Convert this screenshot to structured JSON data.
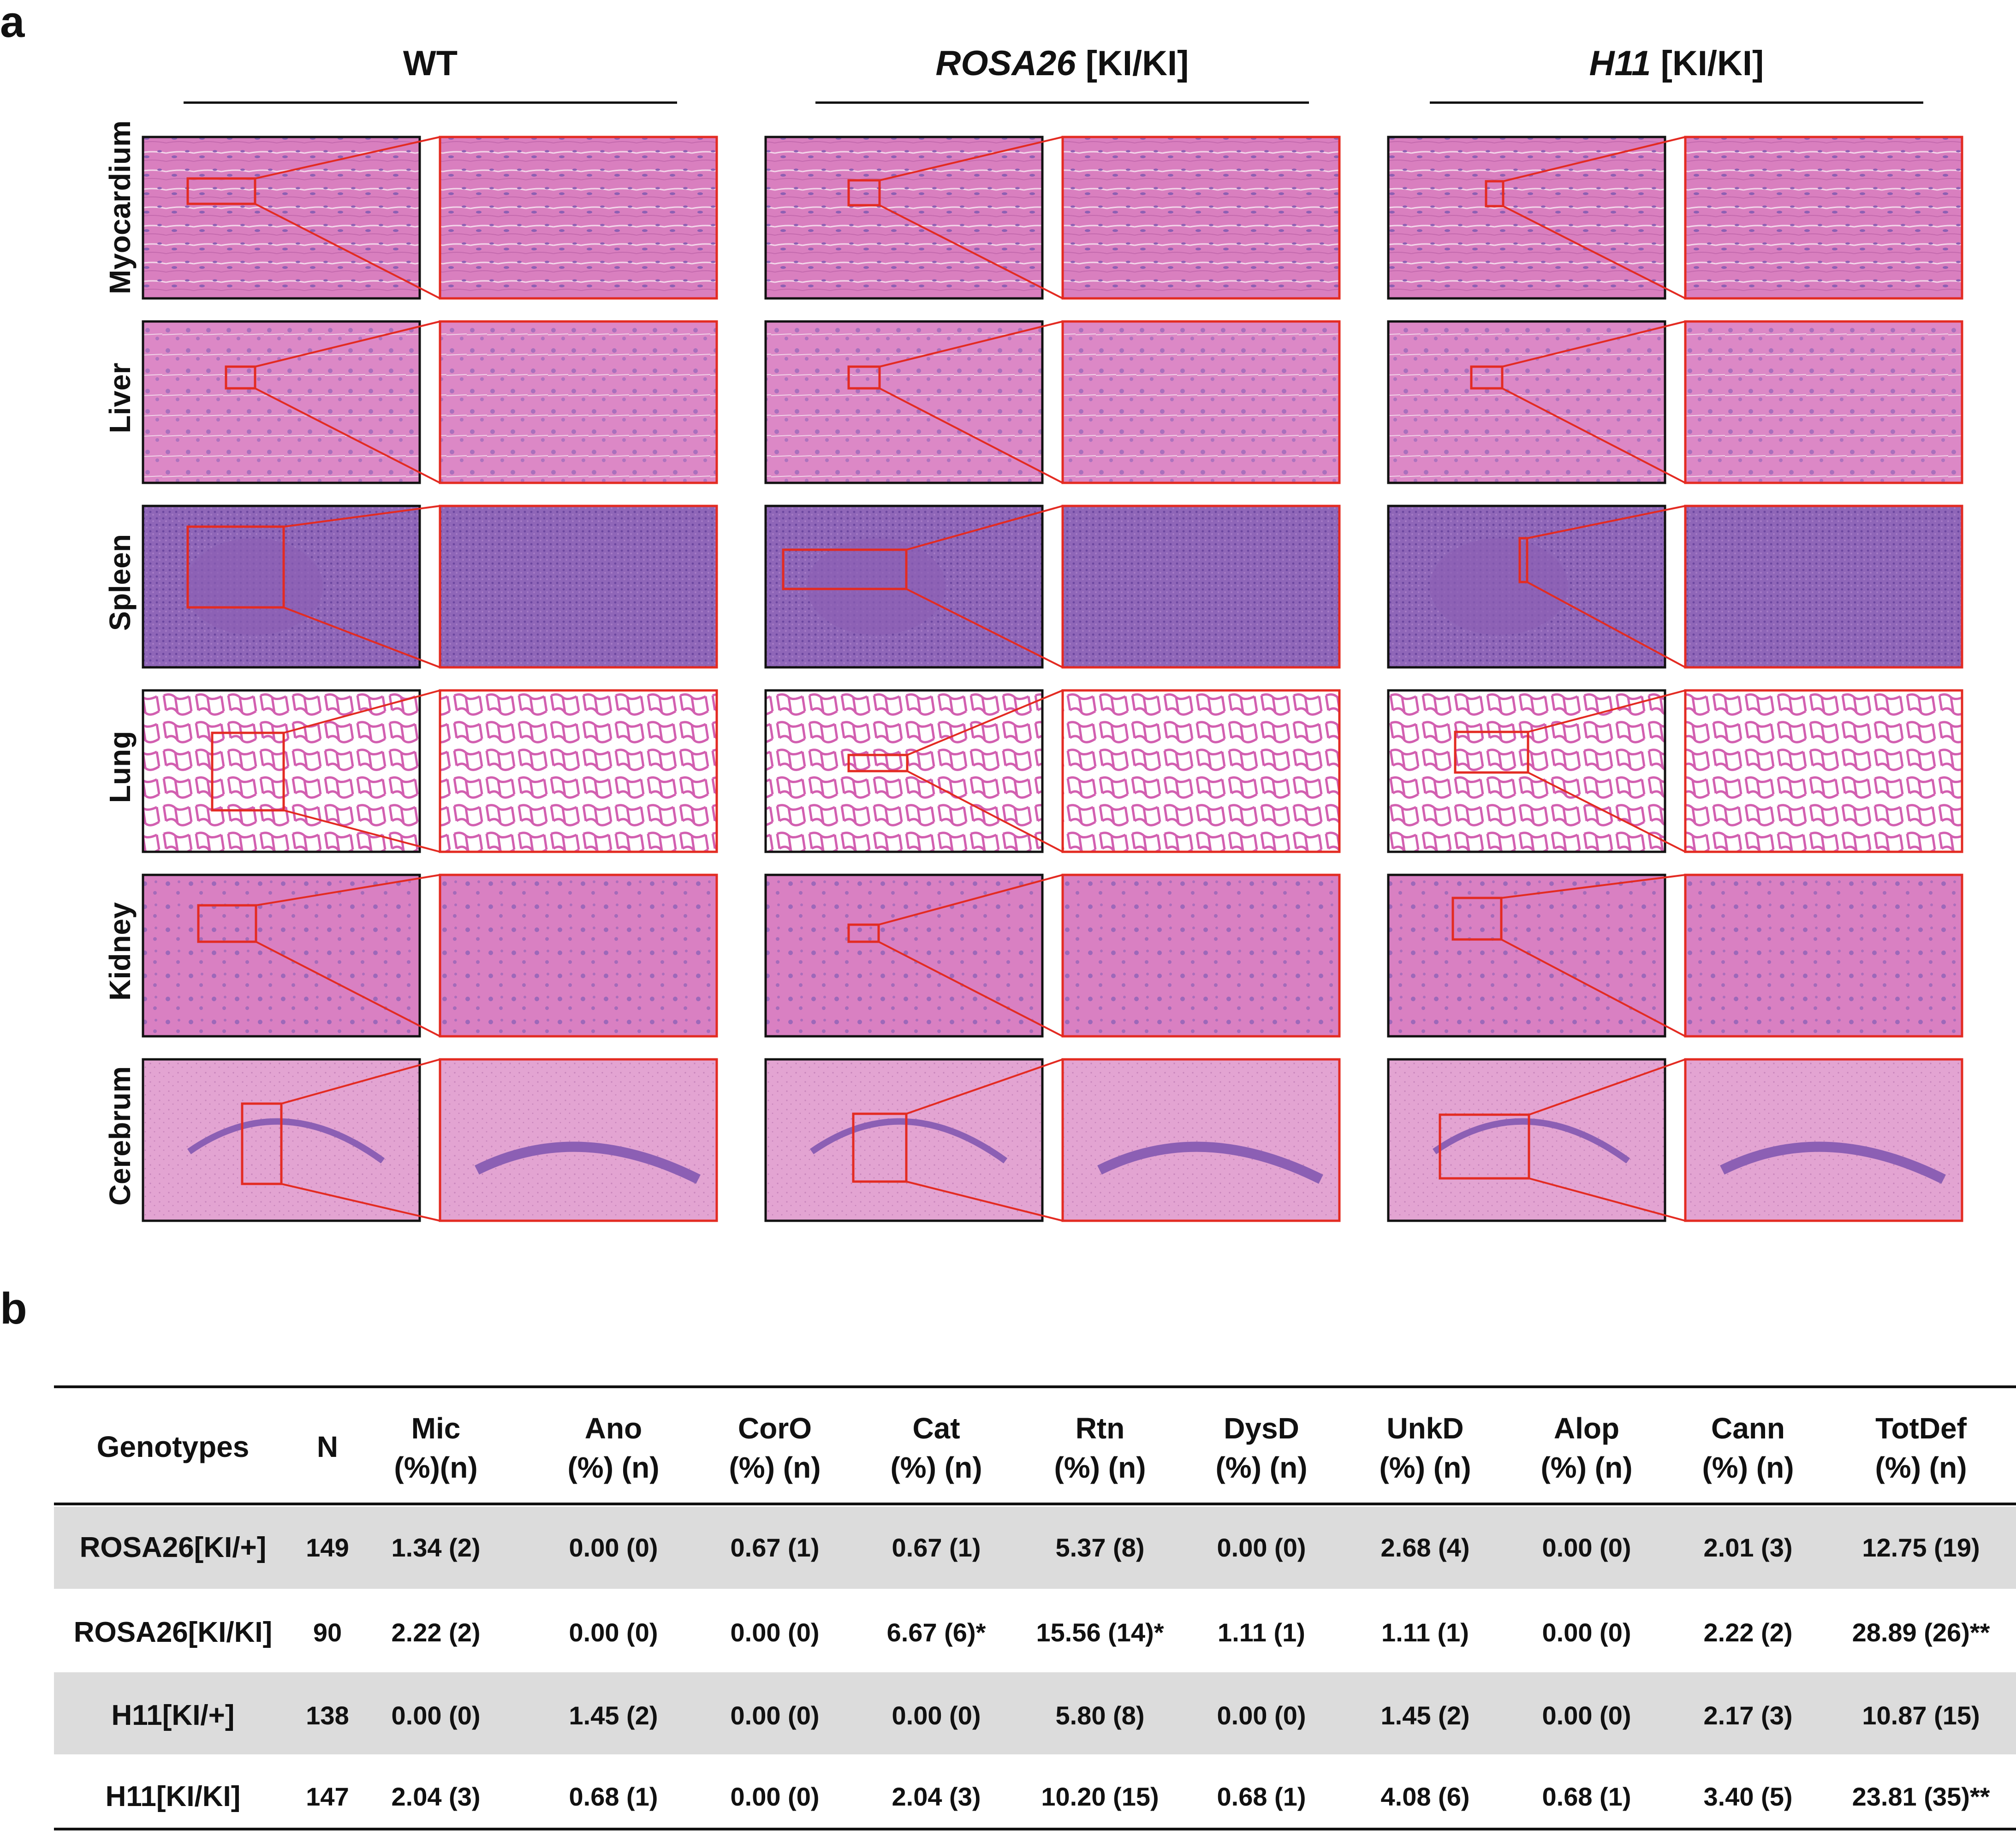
{
  "panel_a": {
    "letter": "a",
    "genotypes": [
      {
        "name": "WT",
        "suffix": ""
      },
      {
        "name": "ROSA26",
        "suffix": " [KI/KI]"
      },
      {
        "name": "H11",
        "suffix": " [KI/KI]"
      }
    ],
    "tissues": [
      "Myocardium",
      "Liver",
      "Spleen",
      "Lung",
      "Kidney",
      "Cerebrum"
    ],
    "colors": {
      "he_pink": "#d77fbf",
      "he_purple": "#8c5fb4",
      "lung_bg": "#ffffff",
      "zoom_box": "#e32b22",
      "frame": "#111111"
    }
  },
  "panel_b": {
    "letter": "b",
    "table": {
      "header_row1": [
        "Genotypes",
        "N",
        "Mic",
        "Ano",
        "CorO",
        "Cat",
        "Rtn",
        "DysD",
        "UnkD",
        "Alop",
        "Cann",
        "TotDef"
      ],
      "header_row2": [
        "",
        "",
        "(%)(n)",
        "(%) (n)",
        "(%) (n)",
        "(%) (n)",
        "(%) (n)",
        "(%) (n)",
        "(%) (n)",
        "(%) (n)",
        "(%) (n)",
        "(%) (n)"
      ],
      "rows": [
        [
          "ROSA26[KI/+]",
          "149",
          "1.34 (2)",
          "0.00 (0)",
          "0.67 (1)",
          "0.67 (1)",
          "5.37 (8)",
          "0.00 (0)",
          "2.68 (4)",
          "0.00 (0)",
          "2.01 (3)",
          "12.75 (19)"
        ],
        [
          "ROSA26[KI/KI]",
          "90",
          "2.22 (2)",
          "0.00 (0)",
          "0.00 (0)",
          "6.67 (6)*",
          "15.56 (14)*",
          "1.11 (1)",
          "1.11 (1)",
          "0.00 (0)",
          "2.22 (2)",
          "28.89 (26)**"
        ],
        [
          "H11[KI/+]",
          "138",
          "0.00 (0)",
          "1.45 (2)",
          "0.00 (0)",
          "0.00 (0)",
          "5.80 (8)",
          "0.00 (0)",
          "1.45 (2)",
          "0.00 (0)",
          "2.17 (3)",
          "10.87 (15)"
        ],
        [
          "H11[KI/KI]",
          "147",
          "2.04 (3)",
          "0.68 (1)",
          "0.00 (0)",
          "2.04 (3)",
          "10.20 (15)",
          "0.68 (1)",
          "4.08 (6)",
          "0.68 (1)",
          "3.40 (5)",
          "23.81 (35)**"
        ]
      ]
    }
  }
}
